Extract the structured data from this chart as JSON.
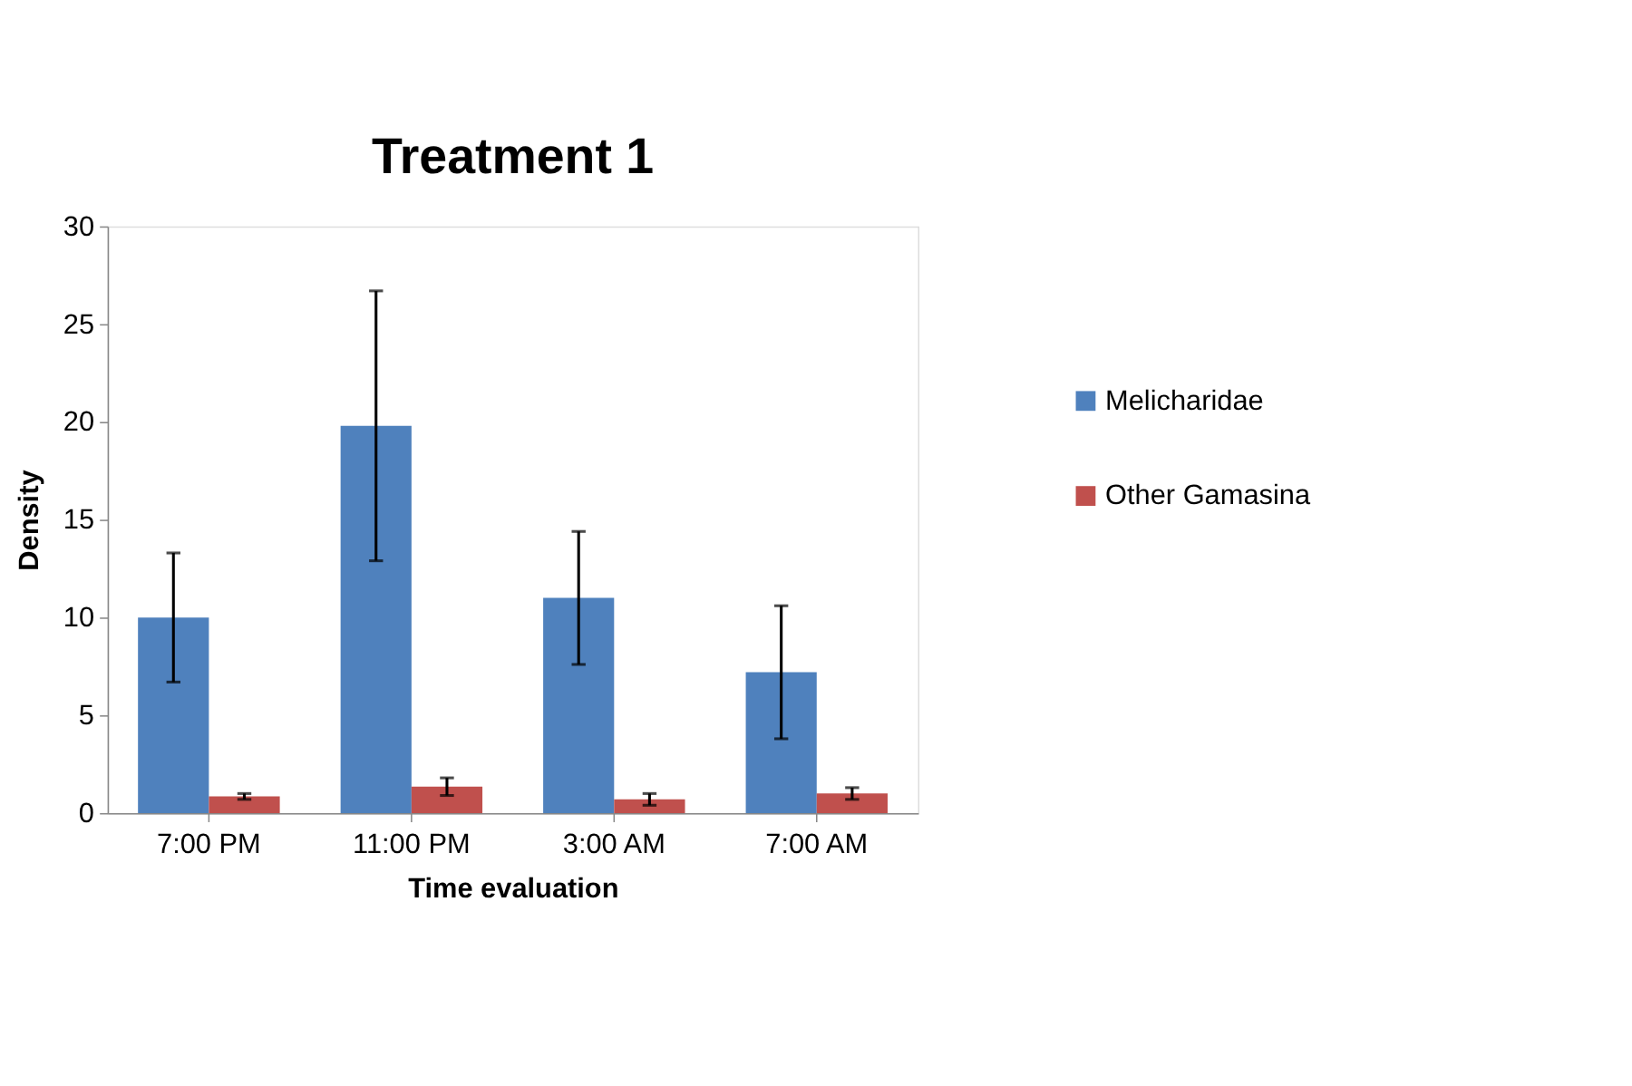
{
  "chart_data": {
    "type": "bar",
    "title": "Treatment 1",
    "xlabel": "Time evaluation",
    "ylabel": "Density",
    "categories": [
      "7:00 PM",
      "11:00 PM",
      "3:00 AM",
      "7:00 AM"
    ],
    "series": [
      {
        "name": "Melicharidae",
        "color": "#4f81bd",
        "values": [
          10.0,
          19.8,
          11.0,
          7.2
        ],
        "errors": [
          3.3,
          6.9,
          3.4,
          3.4
        ]
      },
      {
        "name": "Other Gamasina",
        "color": "#c0504d",
        "values": [
          0.85,
          1.35,
          0.7,
          1.0
        ],
        "errors": [
          0.15,
          0.45,
          0.3,
          0.3
        ]
      }
    ],
    "ylim": [
      0,
      30
    ],
    "yticks": [
      0,
      5,
      10,
      15,
      20,
      25,
      30
    ],
    "grid": false,
    "legend": "right"
  }
}
